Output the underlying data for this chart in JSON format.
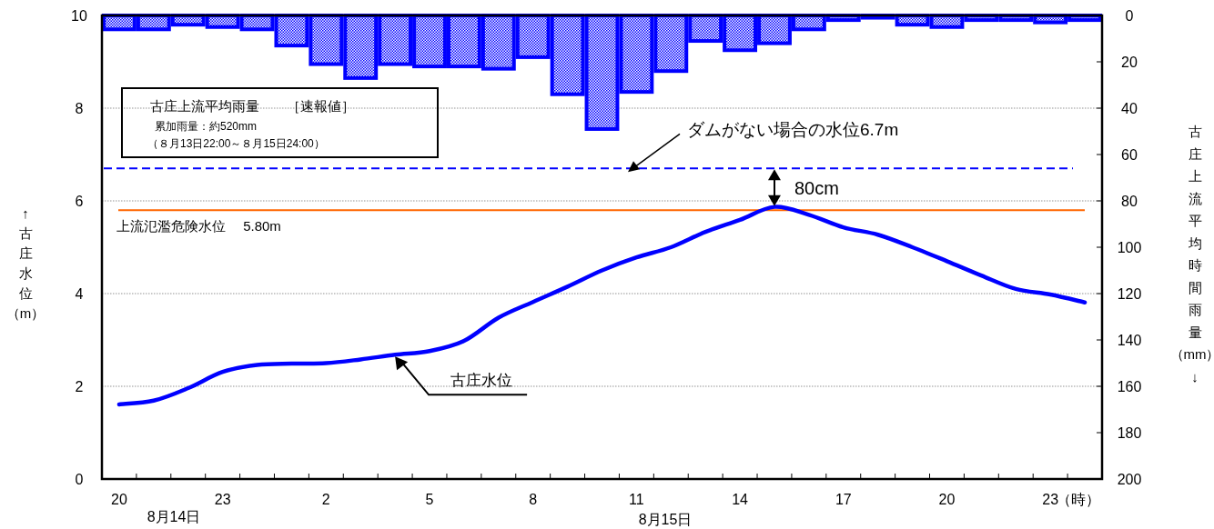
{
  "chart_data": {
    "type": "line",
    "categories": [
      "20",
      null,
      null,
      "23",
      null,
      null,
      "2",
      null,
      null,
      "5",
      null,
      null,
      "8",
      null,
      null,
      "11",
      null,
      null,
      "14",
      null,
      null,
      "17",
      null,
      null,
      "20",
      null,
      null,
      "23",
      null
    ],
    "series": [
      {
        "type": "bar",
        "axis": "y2",
        "color": "#0000ff",
        "values": [
          6,
          6,
          4,
          5,
          6,
          13,
          21,
          27,
          21,
          22,
          22,
          23,
          18,
          34,
          49,
          33,
          24,
          11,
          15,
          12,
          6,
          2,
          1,
          4,
          5,
          2,
          2,
          3,
          2
        ]
      },
      {
        "name": "古庄水位",
        "color": "#0000ff",
        "values": [
          1.61,
          1.69,
          1.96,
          2.31,
          2.46,
          2.49,
          2.5,
          2.58,
          2.68,
          2.76,
          2.98,
          3.48,
          3.82,
          4.15,
          4.5,
          4.78,
          5.0,
          5.33,
          5.59,
          5.87,
          5.7,
          5.43,
          5.27,
          5.0,
          4.7,
          4.39,
          4.1,
          3.98,
          3.81
        ]
      }
    ],
    "xlabel": "（時）",
    "ylim": [
      0,
      10
    ],
    "yticks": [
      0,
      2,
      4,
      6,
      8,
      10
    ],
    "y2lim": [
      200,
      0
    ],
    "y2ticks": [
      0,
      20,
      40,
      60,
      80,
      100,
      120,
      140,
      160,
      180,
      200
    ],
    "ylabel": "↑古庄水位（m）",
    "y2label": "古庄上流平均時間雨量（mm）↓",
    "grid": "y",
    "ref_lines": [
      {
        "axis": "y",
        "value": 6.7,
        "label": "ダムがない場合の水位6.7m",
        "color": "#0000ff",
        "line_style": "dashed"
      },
      {
        "axis": "y",
        "value": 5.8,
        "label": "上流氾濫危険水位　 5.80m",
        "color": "#ff6600",
        "line_style": "solid"
      }
    ],
    "annotations": [
      "古庄上流平均雨量　　［速報値］",
      "累加雨量：約520mm",
      "（８月13日22:00～８月15日24:00）",
      "8月14日",
      "8月15日",
      {
        "text": "80cm",
        "y": 5.87
      }
    ]
  }
}
